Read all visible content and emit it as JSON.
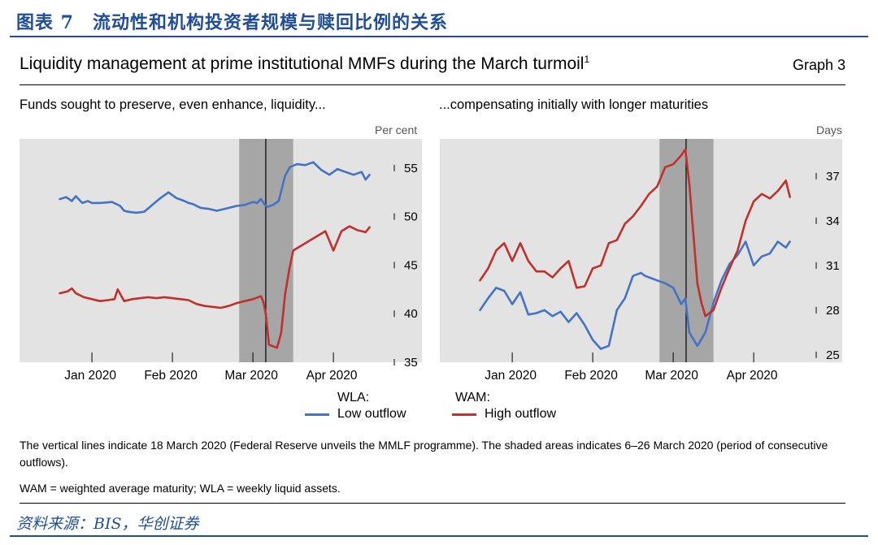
{
  "figure_title": "图表 7　流动性和机构投资者规模与赎回比例的关系",
  "graph_title": "Liquidity management at prime institutional MMFs during the March turmoil",
  "graph_title_sup": "1",
  "graph_number": "Graph 3",
  "left_subtitle": "Funds sought to preserve, even enhance, liquidity...",
  "right_subtitle": "...compensating initially with longer maturities",
  "legend": {
    "wla_header": "WLA:",
    "wam_header": "WAM:",
    "low": "Low outflow",
    "high": "High outflow"
  },
  "colors": {
    "low": "#4472c4",
    "high": "#c0302c",
    "shade": "#a6a6a6",
    "bg": "#e3e3e3",
    "brand": "#1f4e96"
  },
  "note": "The vertical lines indicate 18 March 2020 (Federal Reserve unveils the MMLF programme). The shaded areas indicates 6–26 March 2020 (period of consecutive outflows).",
  "definitions": "WAM = weighted average maturity; WLA = weekly liquid assets.",
  "source": "资料来源：BIS，华创证券",
  "chart_data": [
    {
      "type": "line",
      "title": "Funds sought to preserve, even enhance, liquidity...",
      "ylabel": "Per cent",
      "ylim": [
        35,
        58
      ],
      "yticks": [
        35,
        40,
        45,
        50,
        55
      ],
      "xlim": [
        -0.5,
        4.5
      ],
      "xticks": [
        0.4,
        1.4,
        2.4,
        3.4
      ],
      "xtick_labels": [
        "Jan 2020",
        "Feb 2020",
        "Mar 2020",
        "Apr 2020"
      ],
      "vline": 2.56,
      "shade": [
        2.23,
        2.9
      ],
      "series": [
        {
          "name": "Low outflow",
          "x": [
            0,
            0.08,
            0.15,
            0.2,
            0.28,
            0.35,
            0.4,
            0.5,
            0.65,
            0.75,
            0.8,
            0.85,
            0.95,
            1.05,
            1.15,
            1.25,
            1.35,
            1.45,
            1.55,
            1.6,
            1.65,
            1.75,
            1.85,
            1.95,
            2.05,
            2.15,
            2.2,
            2.3,
            2.4,
            2.45,
            2.5,
            2.55,
            2.58,
            2.65,
            2.72,
            2.8,
            2.86,
            2.95,
            3.05,
            3.15,
            3.25,
            3.35,
            3.45,
            3.55,
            3.65,
            3.75,
            3.8,
            3.85
          ],
          "values": [
            51.8,
            52,
            51.6,
            52.1,
            51.4,
            51.6,
            51.4,
            51.4,
            51.5,
            51.1,
            50.6,
            50.5,
            50.4,
            50.5,
            51.2,
            51.9,
            52.5,
            51.9,
            51.6,
            51.4,
            51.3,
            50.9,
            50.8,
            50.6,
            50.8,
            51,
            51.1,
            51.2,
            51.5,
            51.4,
            51.8,
            51.2,
            51,
            51.2,
            51.6,
            54.2,
            55.1,
            55.4,
            55.3,
            55.6,
            54.8,
            54.3,
            54.9,
            54.6,
            54.3,
            54.6,
            53.8,
            54.3
          ]
        },
        {
          "name": "High outflow",
          "x": [
            0,
            0.1,
            0.15,
            0.2,
            0.3,
            0.4,
            0.5,
            0.6,
            0.68,
            0.72,
            0.8,
            0.9,
            1.0,
            1.1,
            1.2,
            1.3,
            1.4,
            1.5,
            1.6,
            1.7,
            1.8,
            1.9,
            2.0,
            2.1,
            2.2,
            2.3,
            2.4,
            2.5,
            2.53,
            2.56,
            2.6,
            2.7,
            2.75,
            2.8,
            2.85,
            2.9,
            3.0,
            3.1,
            3.2,
            3.3,
            3.35,
            3.4,
            3.5,
            3.6,
            3.7,
            3.75,
            3.8,
            3.85
          ],
          "values": [
            42.1,
            42.3,
            42.6,
            42.1,
            41.7,
            41.5,
            41.3,
            41.4,
            41.5,
            42.5,
            41.3,
            41.5,
            41.6,
            41.7,
            41.6,
            41.7,
            41.6,
            41.5,
            41.4,
            41.0,
            40.8,
            40.7,
            40.6,
            40.8,
            41.1,
            41.3,
            41.5,
            41.8,
            41.2,
            40.0,
            36.8,
            36.5,
            38.0,
            42.0,
            44.5,
            46.5,
            47.0,
            47.5,
            48.0,
            48.5,
            47.5,
            46.5,
            48.5,
            49.0,
            48.6,
            48.5,
            48.4,
            48.9
          ]
        }
      ]
    },
    {
      "type": "line",
      "title": "...compensating initially with longer maturities",
      "ylabel": "Days",
      "ylim": [
        24.5,
        39.5
      ],
      "yticks": [
        25,
        28,
        31,
        34,
        37
      ],
      "xlim": [
        -0.5,
        4.5
      ],
      "xticks": [
        0.4,
        1.4,
        2.4,
        3.4
      ],
      "xtick_labels": [
        "Jan 2020",
        "Feb 2020",
        "Mar 2020",
        "Apr 2020"
      ],
      "vline": 2.56,
      "shade": [
        2.23,
        2.9
      ],
      "series": [
        {
          "name": "Low outflow",
          "x": [
            0,
            0.1,
            0.2,
            0.3,
            0.4,
            0.5,
            0.6,
            0.7,
            0.8,
            0.9,
            1.0,
            1.1,
            1.2,
            1.3,
            1.4,
            1.5,
            1.6,
            1.7,
            1.8,
            1.9,
            2.0,
            2.05,
            2.1,
            2.2,
            2.3,
            2.4,
            2.5,
            2.55,
            2.6,
            2.7,
            2.8,
            2.9,
            3.0,
            3.1,
            3.2,
            3.3,
            3.4,
            3.5,
            3.6,
            3.7,
            3.8,
            3.85
          ],
          "values": [
            28.0,
            28.8,
            29.5,
            29.3,
            28.4,
            29.2,
            27.7,
            27.8,
            28.0,
            27.6,
            27.9,
            27.2,
            27.8,
            27.0,
            26.0,
            25.4,
            25.6,
            28.0,
            28.8,
            30.3,
            30.5,
            30.3,
            30.2,
            30.0,
            29.8,
            29.5,
            28.4,
            28.8,
            26.5,
            25.6,
            26.5,
            28.5,
            30.0,
            31.1,
            31.7,
            32.6,
            31.0,
            31.6,
            31.8,
            32.6,
            32.2,
            32.6
          ]
        },
        {
          "name": "High outflow",
          "x": [
            0,
            0.1,
            0.2,
            0.3,
            0.4,
            0.5,
            0.6,
            0.7,
            0.8,
            0.9,
            1.0,
            1.1,
            1.2,
            1.3,
            1.4,
            1.5,
            1.6,
            1.7,
            1.8,
            1.9,
            2.0,
            2.1,
            2.2,
            2.3,
            2.4,
            2.5,
            2.55,
            2.6,
            2.7,
            2.75,
            2.8,
            2.9,
            3.0,
            3.1,
            3.2,
            3.3,
            3.4,
            3.5,
            3.6,
            3.7,
            3.8,
            3.85
          ],
          "values": [
            30.0,
            30.8,
            32.0,
            32.5,
            31.3,
            32.5,
            31.3,
            30.6,
            30.6,
            30.2,
            30.8,
            31.3,
            29.5,
            29.6,
            30.8,
            31.0,
            32.5,
            32.7,
            33.8,
            34.3,
            35.0,
            35.8,
            36.3,
            37.6,
            37.8,
            38.4,
            38.8,
            36.5,
            29.8,
            28.5,
            27.6,
            28.0,
            29.5,
            30.8,
            32.0,
            34.0,
            35.3,
            35.8,
            35.5,
            36.0,
            36.7,
            35.6
          ]
        }
      ]
    }
  ]
}
